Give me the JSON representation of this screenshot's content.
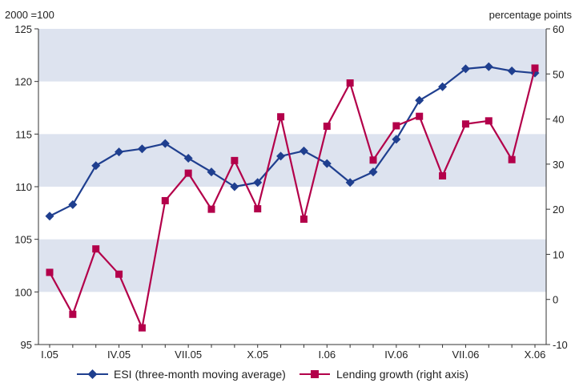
{
  "chart_data": {
    "type": "line",
    "left_axis_label": "2000 =100",
    "right_axis_label": "percentage points",
    "categories": [
      "I.05",
      "II.05",
      "III.05",
      "IV.05",
      "V.05",
      "VI.05",
      "VII.05",
      "VIII.05",
      "IX.05",
      "X.05",
      "XI.05",
      "XII.05",
      "I.06",
      "II.06",
      "III.06",
      "IV.06",
      "V.06",
      "VI.06",
      "VII.06",
      "VIII.06",
      "IX.06",
      "X.06"
    ],
    "x_tick_labels": [
      "I.05",
      "IV.05",
      "VII.05",
      "X.05",
      "I.06",
      "IV.06",
      "VII.06",
      "X.06"
    ],
    "left_ylim": [
      95,
      125
    ],
    "left_ticks": [
      95,
      100,
      105,
      110,
      115,
      120,
      125
    ],
    "right_ylim": [
      -10,
      60
    ],
    "right_ticks": [
      -10,
      0,
      10,
      20,
      30,
      40,
      50,
      60
    ],
    "bands": [
      [
        100,
        105
      ],
      [
        110,
        115
      ],
      [
        120,
        125
      ]
    ],
    "series": [
      {
        "name": "ESI (three-month moving average)",
        "axis": "left",
        "marker": "diamond",
        "color": "#1f3f8f",
        "values": [
          107.2,
          108.3,
          112.0,
          113.3,
          113.6,
          114.1,
          112.7,
          111.4,
          110.0,
          110.4,
          112.9,
          113.4,
          112.2,
          110.4,
          111.4,
          114.5,
          118.2,
          119.5,
          121.2,
          121.4,
          121.0,
          120.8
        ]
      },
      {
        "name": "Lending growth (right axis)",
        "axis": "right",
        "marker": "square",
        "color": "#b3004a",
        "values": [
          6.0,
          -3.3,
          11.2,
          5.6,
          -6.3,
          21.9,
          28.0,
          20.0,
          30.8,
          20.1,
          40.5,
          17.8,
          38.4,
          48.0,
          30.9,
          38.5,
          40.6,
          27.4,
          38.9,
          39.6,
          31.0,
          51.3
        ]
      }
    ]
  }
}
